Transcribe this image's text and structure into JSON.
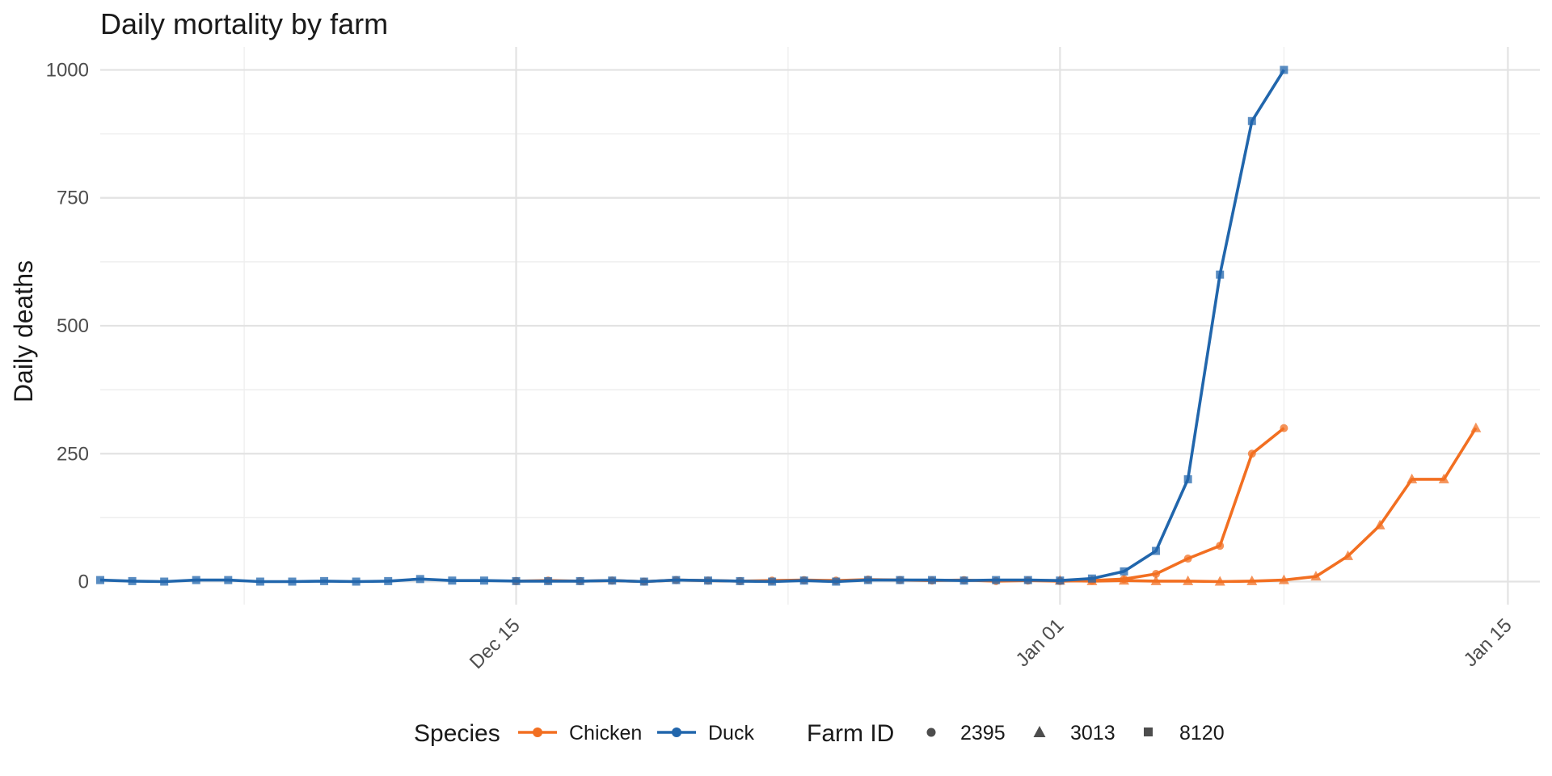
{
  "chart_data": {
    "type": "line",
    "title": "Daily mortality by farm",
    "xlabel": "",
    "ylabel": "Daily deaths",
    "x_type": "date",
    "xlim": [
      "2024-12-02",
      "2025-01-16"
    ],
    "ylim": [
      -45,
      1045
    ],
    "y_ticks": [
      0,
      250,
      500,
      750,
      1000
    ],
    "y_tick_labels": [
      "0",
      "250",
      "500",
      "750",
      "1000"
    ],
    "x_ticks": [
      "2024-12-15",
      "2025-01-01",
      "2025-01-15"
    ],
    "x_tick_labels": [
      "Dec 15",
      "Jan 01",
      "Jan 15"
    ],
    "grid": true,
    "legend_position": "bottom",
    "legend": {
      "color_title": "Species",
      "shape_title": "Farm ID",
      "species": [
        {
          "name": "Chicken",
          "color": "#f26f21"
        },
        {
          "name": "Duck",
          "color": "#2166ac"
        }
      ],
      "farms": [
        {
          "name": "2395",
          "shape": "circle"
        },
        {
          "name": "3013",
          "shape": "triangle"
        },
        {
          "name": "8120",
          "shape": "square"
        }
      ]
    },
    "series": [
      {
        "species": "Chicken",
        "farm": "3013",
        "color": "#f26f21",
        "shape": "triangle",
        "x": [
          "2025-01-01",
          "2025-01-02",
          "2025-01-03",
          "2025-01-04",
          "2025-01-05",
          "2025-01-06",
          "2025-01-07",
          "2025-01-08",
          "2025-01-09",
          "2025-01-10",
          "2025-01-11",
          "2025-01-12",
          "2025-01-13",
          "2025-01-14"
        ],
        "y": [
          2,
          1,
          2,
          1,
          1,
          0,
          1,
          3,
          10,
          50,
          110,
          200,
          200,
          300
        ]
      },
      {
        "species": "Chicken",
        "farm": "2395",
        "color": "#f26f21",
        "shape": "circle",
        "x": [
          "2024-12-15",
          "2024-12-16",
          "2024-12-17",
          "2024-12-18",
          "2024-12-19",
          "2024-12-20",
          "2024-12-21",
          "2024-12-22",
          "2024-12-23",
          "2024-12-24",
          "2024-12-25",
          "2024-12-26",
          "2024-12-27",
          "2024-12-28",
          "2024-12-29",
          "2024-12-30",
          "2024-12-31",
          "2025-01-01",
          "2025-01-02",
          "2025-01-03",
          "2025-01-04",
          "2025-01-05",
          "2025-01-06",
          "2025-01-07",
          "2025-01-08"
        ],
        "y": [
          1,
          2,
          1,
          2,
          0,
          3,
          2,
          1,
          2,
          3,
          2,
          4,
          3,
          2,
          3,
          1,
          2,
          1,
          2,
          5,
          15,
          45,
          70,
          250,
          300
        ]
      },
      {
        "species": "Duck",
        "farm": "8120",
        "color": "#2166ac",
        "shape": "square",
        "x": [
          "2024-12-02",
          "2024-12-03",
          "2024-12-04",
          "2024-12-05",
          "2024-12-06",
          "2024-12-07",
          "2024-12-08",
          "2024-12-09",
          "2024-12-10",
          "2024-12-11",
          "2024-12-12",
          "2024-12-13",
          "2024-12-14",
          "2024-12-15",
          "2024-12-16",
          "2024-12-17",
          "2024-12-18",
          "2024-12-19",
          "2024-12-20",
          "2024-12-21",
          "2024-12-22",
          "2024-12-23",
          "2024-12-24",
          "2024-12-25",
          "2024-12-26",
          "2024-12-27",
          "2024-12-28",
          "2024-12-29",
          "2024-12-30",
          "2024-12-31",
          "2025-01-01",
          "2025-01-02",
          "2025-01-03",
          "2025-01-04",
          "2025-01-05",
          "2025-01-06",
          "2025-01-07",
          "2025-01-08",
          "2025-01-09"
        ],
        "y": [
          3,
          1,
          0,
          3,
          3,
          0,
          0,
          1,
          0,
          1,
          5,
          2,
          2,
          1,
          1,
          1,
          2,
          0,
          3,
          2,
          1,
          0,
          2,
          0,
          3,
          3,
          3,
          2,
          3,
          3,
          2,
          6,
          20,
          60,
          200,
          600,
          900,
          1000,
          null
        ]
      }
    ]
  }
}
